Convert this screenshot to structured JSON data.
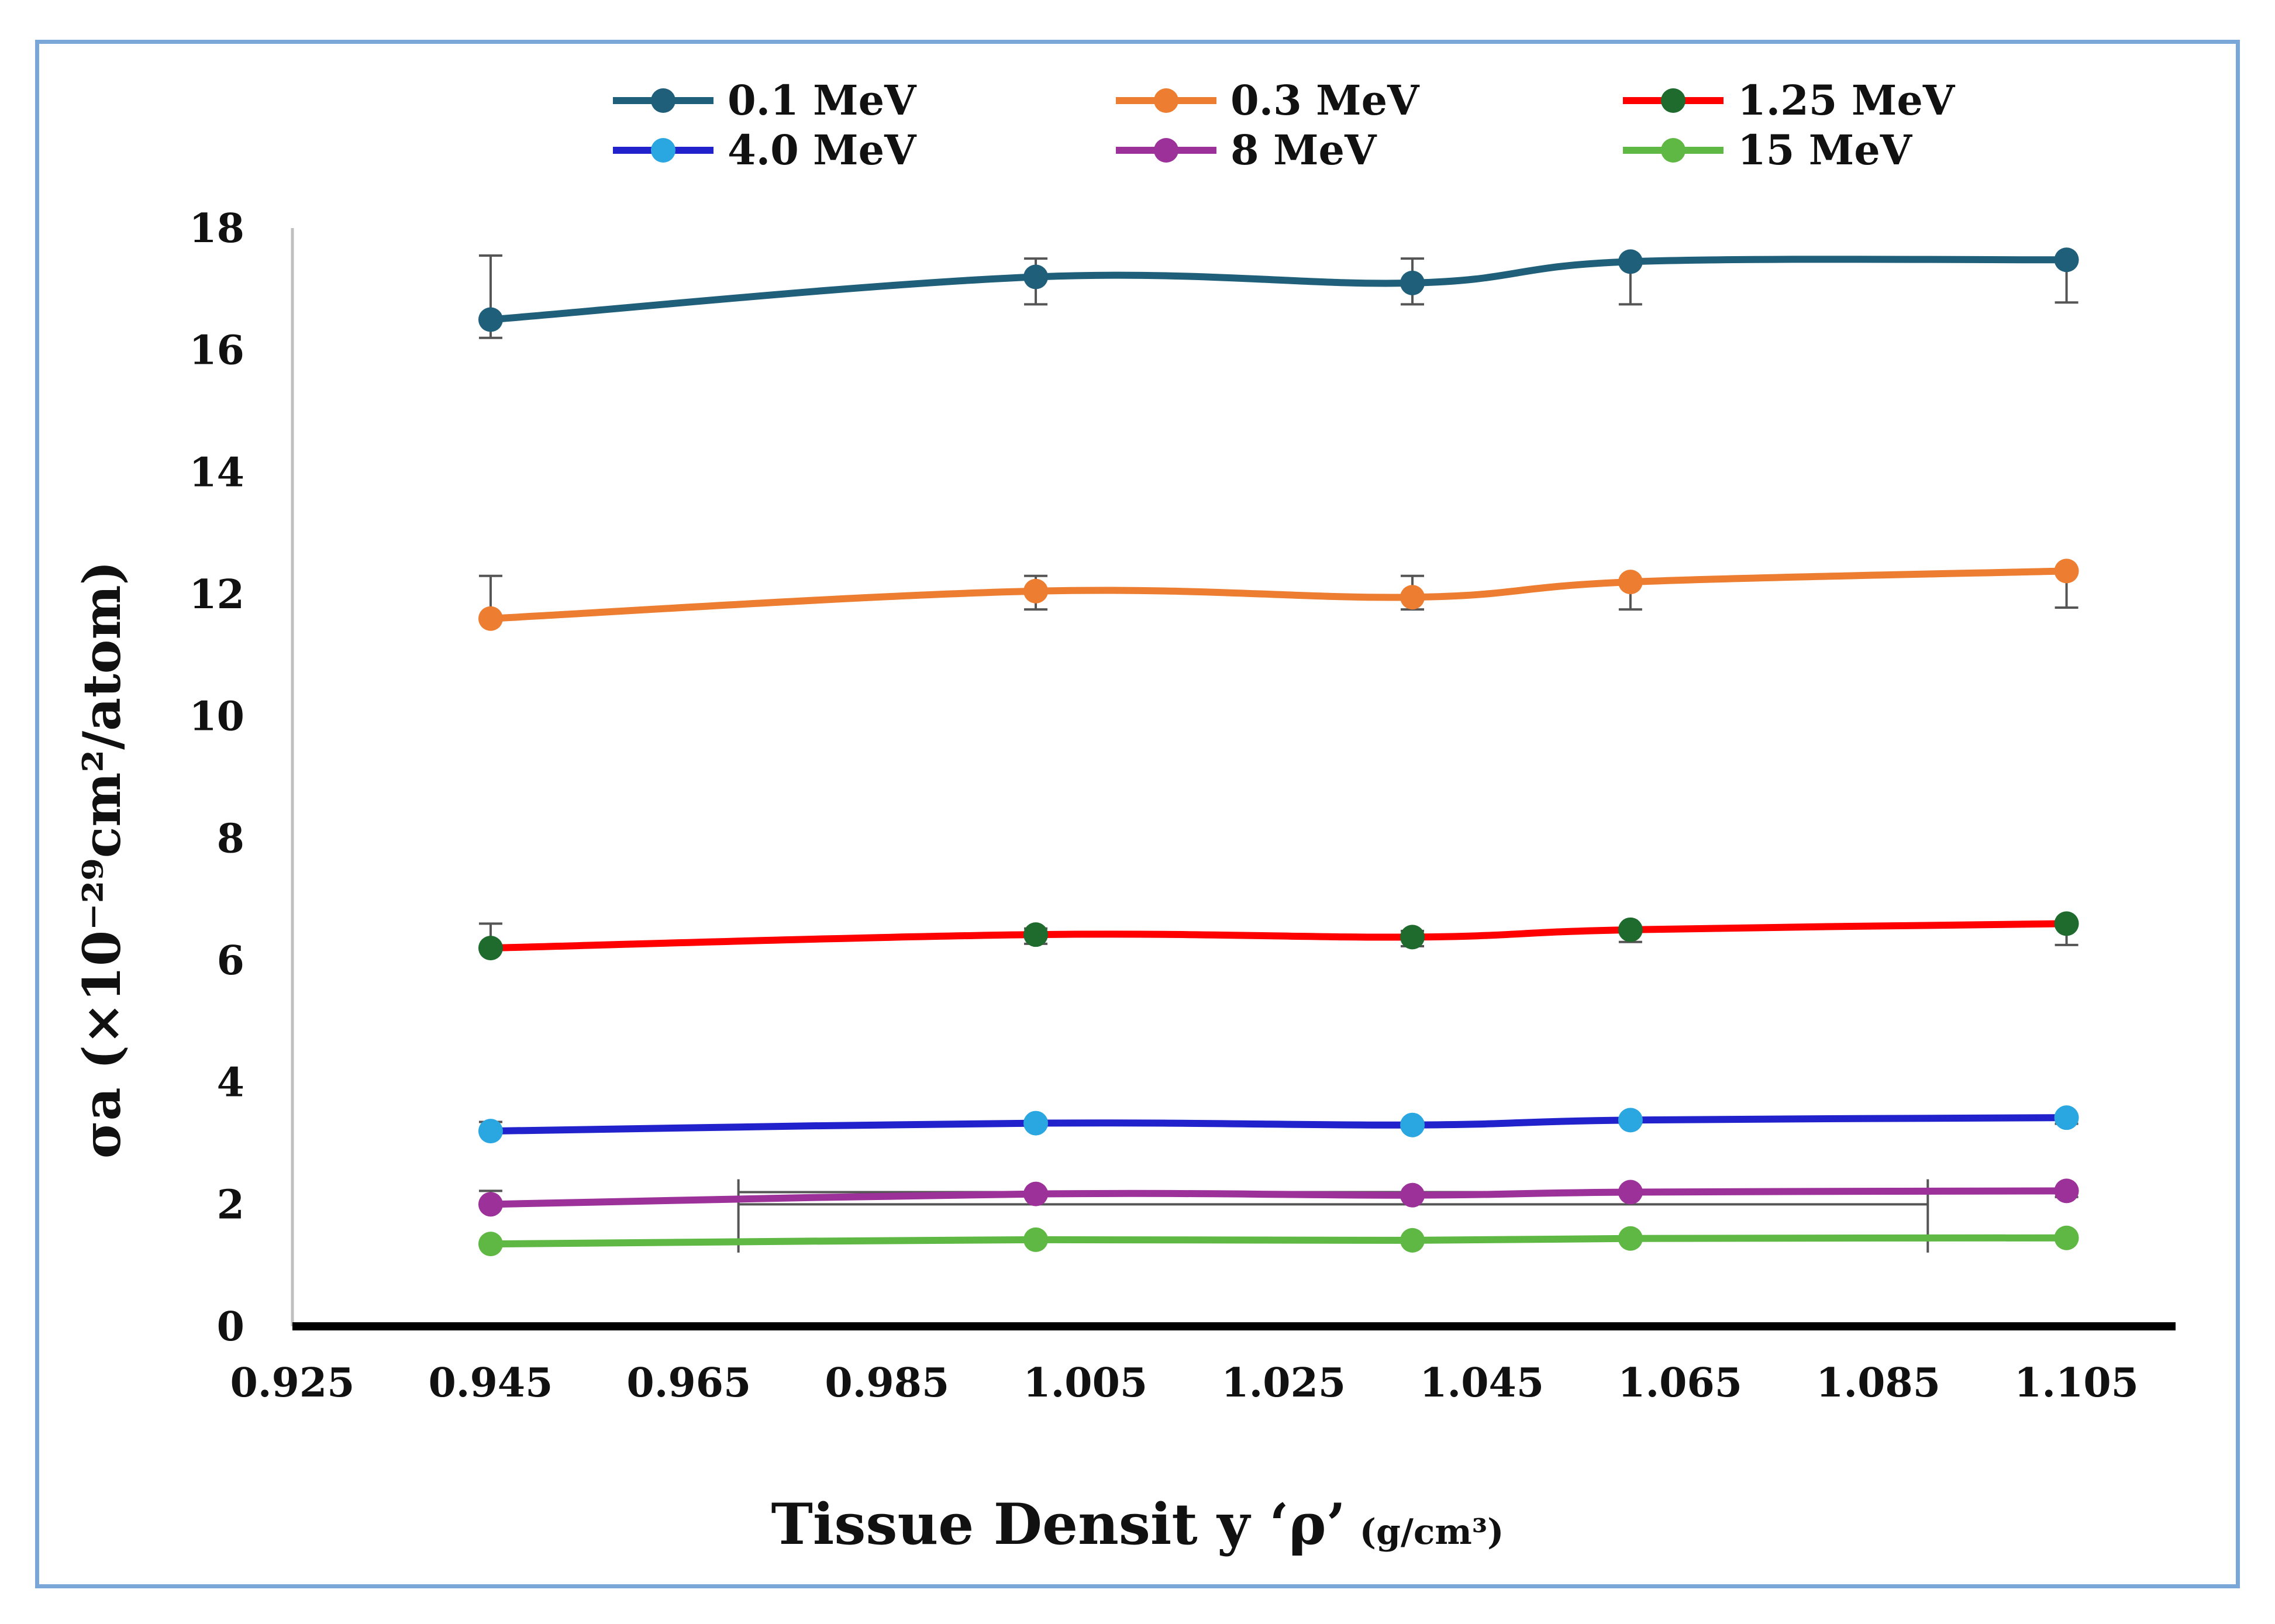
{
  "chart_data": {
    "type": "line",
    "title": "",
    "xlabel": "Tissue Densit y ‘ρ’",
    "xlabel_units": "(g/cm³)",
    "ylabel": "σa (×10⁻²⁹cm²/atom)",
    "xlim": [
      0.925,
      1.115
    ],
    "ylim": [
      0,
      18
    ],
    "x_ticks": [
      0.925,
      0.945,
      0.965,
      0.985,
      1.005,
      1.025,
      1.045,
      1.065,
      1.085,
      1.105
    ],
    "x_tick_labels": [
      "0.925",
      "0.945",
      "0.965",
      "0.985",
      "1.005",
      "1.025",
      "1.045",
      "1.065",
      "1.085",
      "1.105"
    ],
    "y_ticks": [
      0,
      2,
      4,
      6,
      8,
      10,
      12,
      14,
      16,
      18
    ],
    "y_tick_labels": [
      "0",
      "2",
      "4",
      "6",
      "8",
      "10",
      "12",
      "14",
      "16",
      "18"
    ],
    "x": [
      0.945,
      1.0,
      1.038,
      1.06,
      1.104
    ],
    "legend_position": "top",
    "series": [
      {
        "name": "0.1 MeV",
        "values": [
          16.5,
          17.2,
          17.1,
          17.45,
          17.48
        ],
        "line_color": "#1f5f7a",
        "marker_color": "#1f5f7a",
        "err_up": [
          1.05,
          0.3,
          0.4,
          0.0,
          0.0
        ],
        "err_down": [
          0.3,
          0.45,
          0.35,
          0.7,
          0.7
        ]
      },
      {
        "name": "0.3 MeV",
        "values": [
          11.6,
          12.05,
          11.95,
          12.2,
          12.38
        ],
        "line_color": "#ed7d31",
        "marker_color": "#ed7d31",
        "err_up": [
          0.7,
          0.25,
          0.35,
          0.0,
          0.0
        ],
        "err_down": [
          0.0,
          0.3,
          0.2,
          0.45,
          0.6
        ]
      },
      {
        "name": "1.25 MeV",
        "values": [
          6.2,
          6.42,
          6.38,
          6.5,
          6.6
        ],
        "line_color": "#ff0000",
        "marker_color": "#1e6b2d",
        "err_up": [
          0.4,
          0.1,
          0.1,
          0.0,
          0.0
        ],
        "err_down": [
          0.0,
          0.15,
          0.15,
          0.2,
          0.35
        ]
      },
      {
        "name": "4.0 MeV",
        "values": [
          3.2,
          3.33,
          3.3,
          3.38,
          3.42
        ],
        "line_color": "#2222cc",
        "marker_color": "#2aa7e0",
        "err_up": [
          0.15,
          0.05,
          0.05,
          0.0,
          0.0
        ],
        "err_down": [
          0.0,
          0.05,
          0.05,
          0.05,
          0.1
        ]
      },
      {
        "name": "8 MeV",
        "values": [
          2.0,
          2.17,
          2.15,
          2.2,
          2.22
        ],
        "line_color": "#9b3199",
        "marker_color": "#9b3199",
        "err_up": [
          0.22,
          0.05,
          0.05,
          0.0,
          0.0
        ],
        "err_down": [
          0.0,
          0.05,
          0.05,
          0.05,
          0.1
        ]
      },
      {
        "name": "15 MeV",
        "values": [
          1.35,
          1.42,
          1.41,
          1.44,
          1.45
        ],
        "line_color": "#5fb844",
        "marker_color": "#5fb844",
        "err_up": [
          0.0,
          0.0,
          0.0,
          0.0,
          0.0
        ],
        "err_down": [
          0.0,
          0.0,
          0.0,
          0.0,
          0.0
        ]
      }
    ],
    "annotation_bracket": {
      "x_start": 0.97,
      "x_end": 1.09,
      "y_top": 2.2,
      "y_mid": 2.0,
      "y_bottom": 1.42
    }
  }
}
